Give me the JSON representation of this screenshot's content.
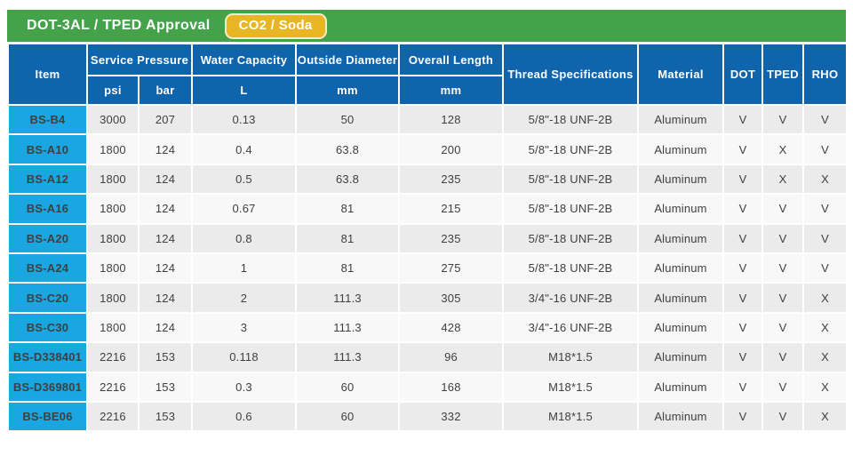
{
  "header": {
    "title": "DOT-3AL / TPED Approval",
    "badge": "CO2 / Soda"
  },
  "colors": {
    "green_bar": "#44a24b",
    "badge_yellow": "#e8b524",
    "header_dark_blue": "#0f64ab",
    "header_cyan": "#1aa7e1",
    "row_gray": "#ebebeb",
    "row_white": "#f8f8f8"
  },
  "table": {
    "columns": {
      "item": "Item",
      "service_pressure": "Service Pressure",
      "psi": "psi",
      "bar": "bar",
      "water_capacity": "Water Capacity",
      "water_capacity_unit": "L",
      "outside_diameter": "Outside Diameter",
      "outside_diameter_unit": "mm",
      "overall_length": "Overall Length",
      "overall_length_unit": "mm",
      "thread_specifications": "Thread Specifications",
      "material": "Material",
      "dot": "DOT",
      "tped": "TPED",
      "rho": "RHO"
    },
    "rows": [
      {
        "item": "BS-B4",
        "psi": "3000",
        "bar": "207",
        "water_capacity": "0.13",
        "outside_diameter": "50",
        "overall_length": "128",
        "thread_spec": "5/8\"-18 UNF-2B",
        "material": "Aluminum",
        "dot": "V",
        "tped": "V",
        "rho": "V"
      },
      {
        "item": "BS-A10",
        "psi": "1800",
        "bar": "124",
        "water_capacity": "0.4",
        "outside_diameter": "63.8",
        "overall_length": "200",
        "thread_spec": "5/8\"-18 UNF-2B",
        "material": "Aluminum",
        "dot": "V",
        "tped": "X",
        "rho": "V"
      },
      {
        "item": "BS-A12",
        "psi": "1800",
        "bar": "124",
        "water_capacity": "0.5",
        "outside_diameter": "63.8",
        "overall_length": "235",
        "thread_spec": "5/8\"-18 UNF-2B",
        "material": "Aluminum",
        "dot": "V",
        "tped": "X",
        "rho": "X"
      },
      {
        "item": "BS-A16",
        "psi": "1800",
        "bar": "124",
        "water_capacity": "0.67",
        "outside_diameter": "81",
        "overall_length": "215",
        "thread_spec": "5/8\"-18 UNF-2B",
        "material": "Aluminum",
        "dot": "V",
        "tped": "V",
        "rho": "V"
      },
      {
        "item": "BS-A20",
        "psi": "1800",
        "bar": "124",
        "water_capacity": "0.8",
        "outside_diameter": "81",
        "overall_length": "235",
        "thread_spec": "5/8\"-18 UNF-2B",
        "material": "Aluminum",
        "dot": "V",
        "tped": "V",
        "rho": "V"
      },
      {
        "item": "BS-A24",
        "psi": "1800",
        "bar": "124",
        "water_capacity": "1",
        "outside_diameter": "81",
        "overall_length": "275",
        "thread_spec": "5/8\"-18 UNF-2B",
        "material": "Aluminum",
        "dot": "V",
        "tped": "V",
        "rho": "V"
      },
      {
        "item": "BS-C20",
        "psi": "1800",
        "bar": "124",
        "water_capacity": "2",
        "outside_diameter": "111.3",
        "overall_length": "305",
        "thread_spec": "3/4\"-16 UNF-2B",
        "material": "Aluminum",
        "dot": "V",
        "tped": "V",
        "rho": "X"
      },
      {
        "item": "BS-C30",
        "psi": "1800",
        "bar": "124",
        "water_capacity": "3",
        "outside_diameter": "111.3",
        "overall_length": "428",
        "thread_spec": "3/4\"-16 UNF-2B",
        "material": "Aluminum",
        "dot": "V",
        "tped": "V",
        "rho": "X"
      },
      {
        "item": "BS-D338401",
        "psi": "2216",
        "bar": "153",
        "water_capacity": "0.118",
        "outside_diameter": "111.3",
        "overall_length": "96",
        "thread_spec": "M18*1.5",
        "material": "Aluminum",
        "dot": "V",
        "tped": "V",
        "rho": "X"
      },
      {
        "item": "BS-D369801",
        "psi": "2216",
        "bar": "153",
        "water_capacity": "0.3",
        "outside_diameter": "60",
        "overall_length": "168",
        "thread_spec": "M18*1.5",
        "material": "Aluminum",
        "dot": "V",
        "tped": "V",
        "rho": "X"
      },
      {
        "item": "BS-BE06",
        "psi": "2216",
        "bar": "153",
        "water_capacity": "0.6",
        "outside_diameter": "60",
        "overall_length": "332",
        "thread_spec": "M18*1.5",
        "material": "Aluminum",
        "dot": "V",
        "tped": "V",
        "rho": "X"
      }
    ]
  }
}
